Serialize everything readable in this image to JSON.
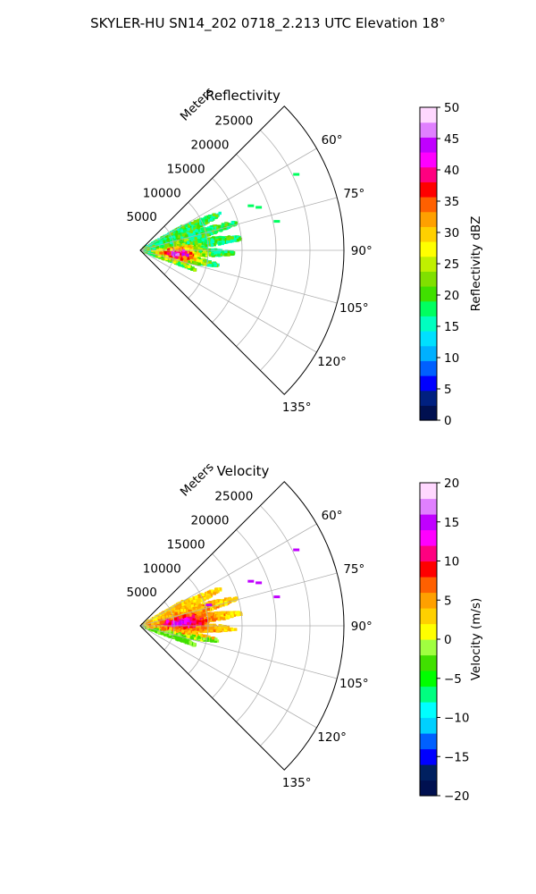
{
  "figure_title": "SKYLER-HU  SN14_202  0718_2.213 UTC Elevation 18°",
  "chart_data": [
    {
      "type": "heatmap",
      "projection": "polar-sector",
      "title": "Reflectivity",
      "radial_label": "Meters",
      "radial_ticks": [
        5000,
        10000,
        15000,
        20000,
        25000
      ],
      "radial_tick_labels": [
        "5000",
        "10000",
        "15000",
        "20000",
        "25000"
      ],
      "radial_max_m": 30000,
      "azimuth_range_deg": [
        45,
        135
      ],
      "azimuth_ticks": [
        60,
        75,
        90,
        105,
        120,
        135
      ],
      "azimuth_tick_labels": [
        "60°",
        "75°",
        "90°",
        "105°",
        "120°",
        "135°"
      ],
      "grid": true,
      "colorbar": {
        "label": "Reflectivity dBZ",
        "range": [
          0,
          50
        ],
        "ticks": [
          0,
          5,
          10,
          15,
          20,
          25,
          30,
          35,
          40,
          45,
          50
        ],
        "tick_labels": [
          "0",
          "5",
          "10",
          "15",
          "20",
          "25",
          "30",
          "35",
          "40",
          "45",
          "50"
        ]
      },
      "echo_region": {
        "azimuth_deg": [
          60,
          110
        ],
        "range_m": [
          0,
          15000
        ],
        "peak_value": 40
      }
    },
    {
      "type": "heatmap",
      "projection": "polar-sector",
      "title": "Velocity",
      "radial_label": "Meters",
      "radial_ticks": [
        5000,
        10000,
        15000,
        20000,
        25000
      ],
      "radial_tick_labels": [
        "5000",
        "10000",
        "15000",
        "20000",
        "25000"
      ],
      "radial_max_m": 30000,
      "azimuth_range_deg": [
        45,
        135
      ],
      "azimuth_ticks": [
        60,
        75,
        90,
        105,
        120,
        135
      ],
      "azimuth_tick_labels": [
        "60°",
        "75°",
        "90°",
        "105°",
        "120°",
        "135°"
      ],
      "grid": true,
      "colorbar": {
        "label": "Velocity (m/s)",
        "range": [
          -20,
          20
        ],
        "ticks": [
          -20,
          -15,
          -10,
          -5,
          0,
          5,
          10,
          15,
          20
        ],
        "tick_labels": [
          "−20",
          "−15",
          "−10",
          "−5",
          "0",
          "5",
          "10",
          "15",
          "20"
        ]
      },
      "echo_region": {
        "azimuth_deg": [
          60,
          110
        ],
        "range_m": [
          0,
          15000
        ],
        "peak_value": 12
      }
    }
  ],
  "colors": {
    "reflectivity_scale": [
      "#001050",
      "#002080",
      "#0000ff",
      "#0060ff",
      "#00b0ff",
      "#00e0ff",
      "#00ffc0",
      "#00ff60",
      "#40e000",
      "#80e000",
      "#c0f000",
      "#ffff00",
      "#ffd000",
      "#ffa000",
      "#ff6000",
      "#ff0000",
      "#ff0080",
      "#ff00ff",
      "#c000ff",
      "#e080ff",
      "#ffd8ff"
    ],
    "velocity_scale": [
      "#001050",
      "#002060",
      "#0000ff",
      "#0060ff",
      "#00d0ff",
      "#00ffff",
      "#00ff80",
      "#00ff00",
      "#40e000",
      "#a0ff40",
      "#ffff00",
      "#ffd000",
      "#ffa000",
      "#ff6000",
      "#ff0000",
      "#ff0080",
      "#ff00ff",
      "#c000ff",
      "#e080ff",
      "#ffd8ff"
    ],
    "grid": "#b0b0b0",
    "axis": "#000000"
  }
}
